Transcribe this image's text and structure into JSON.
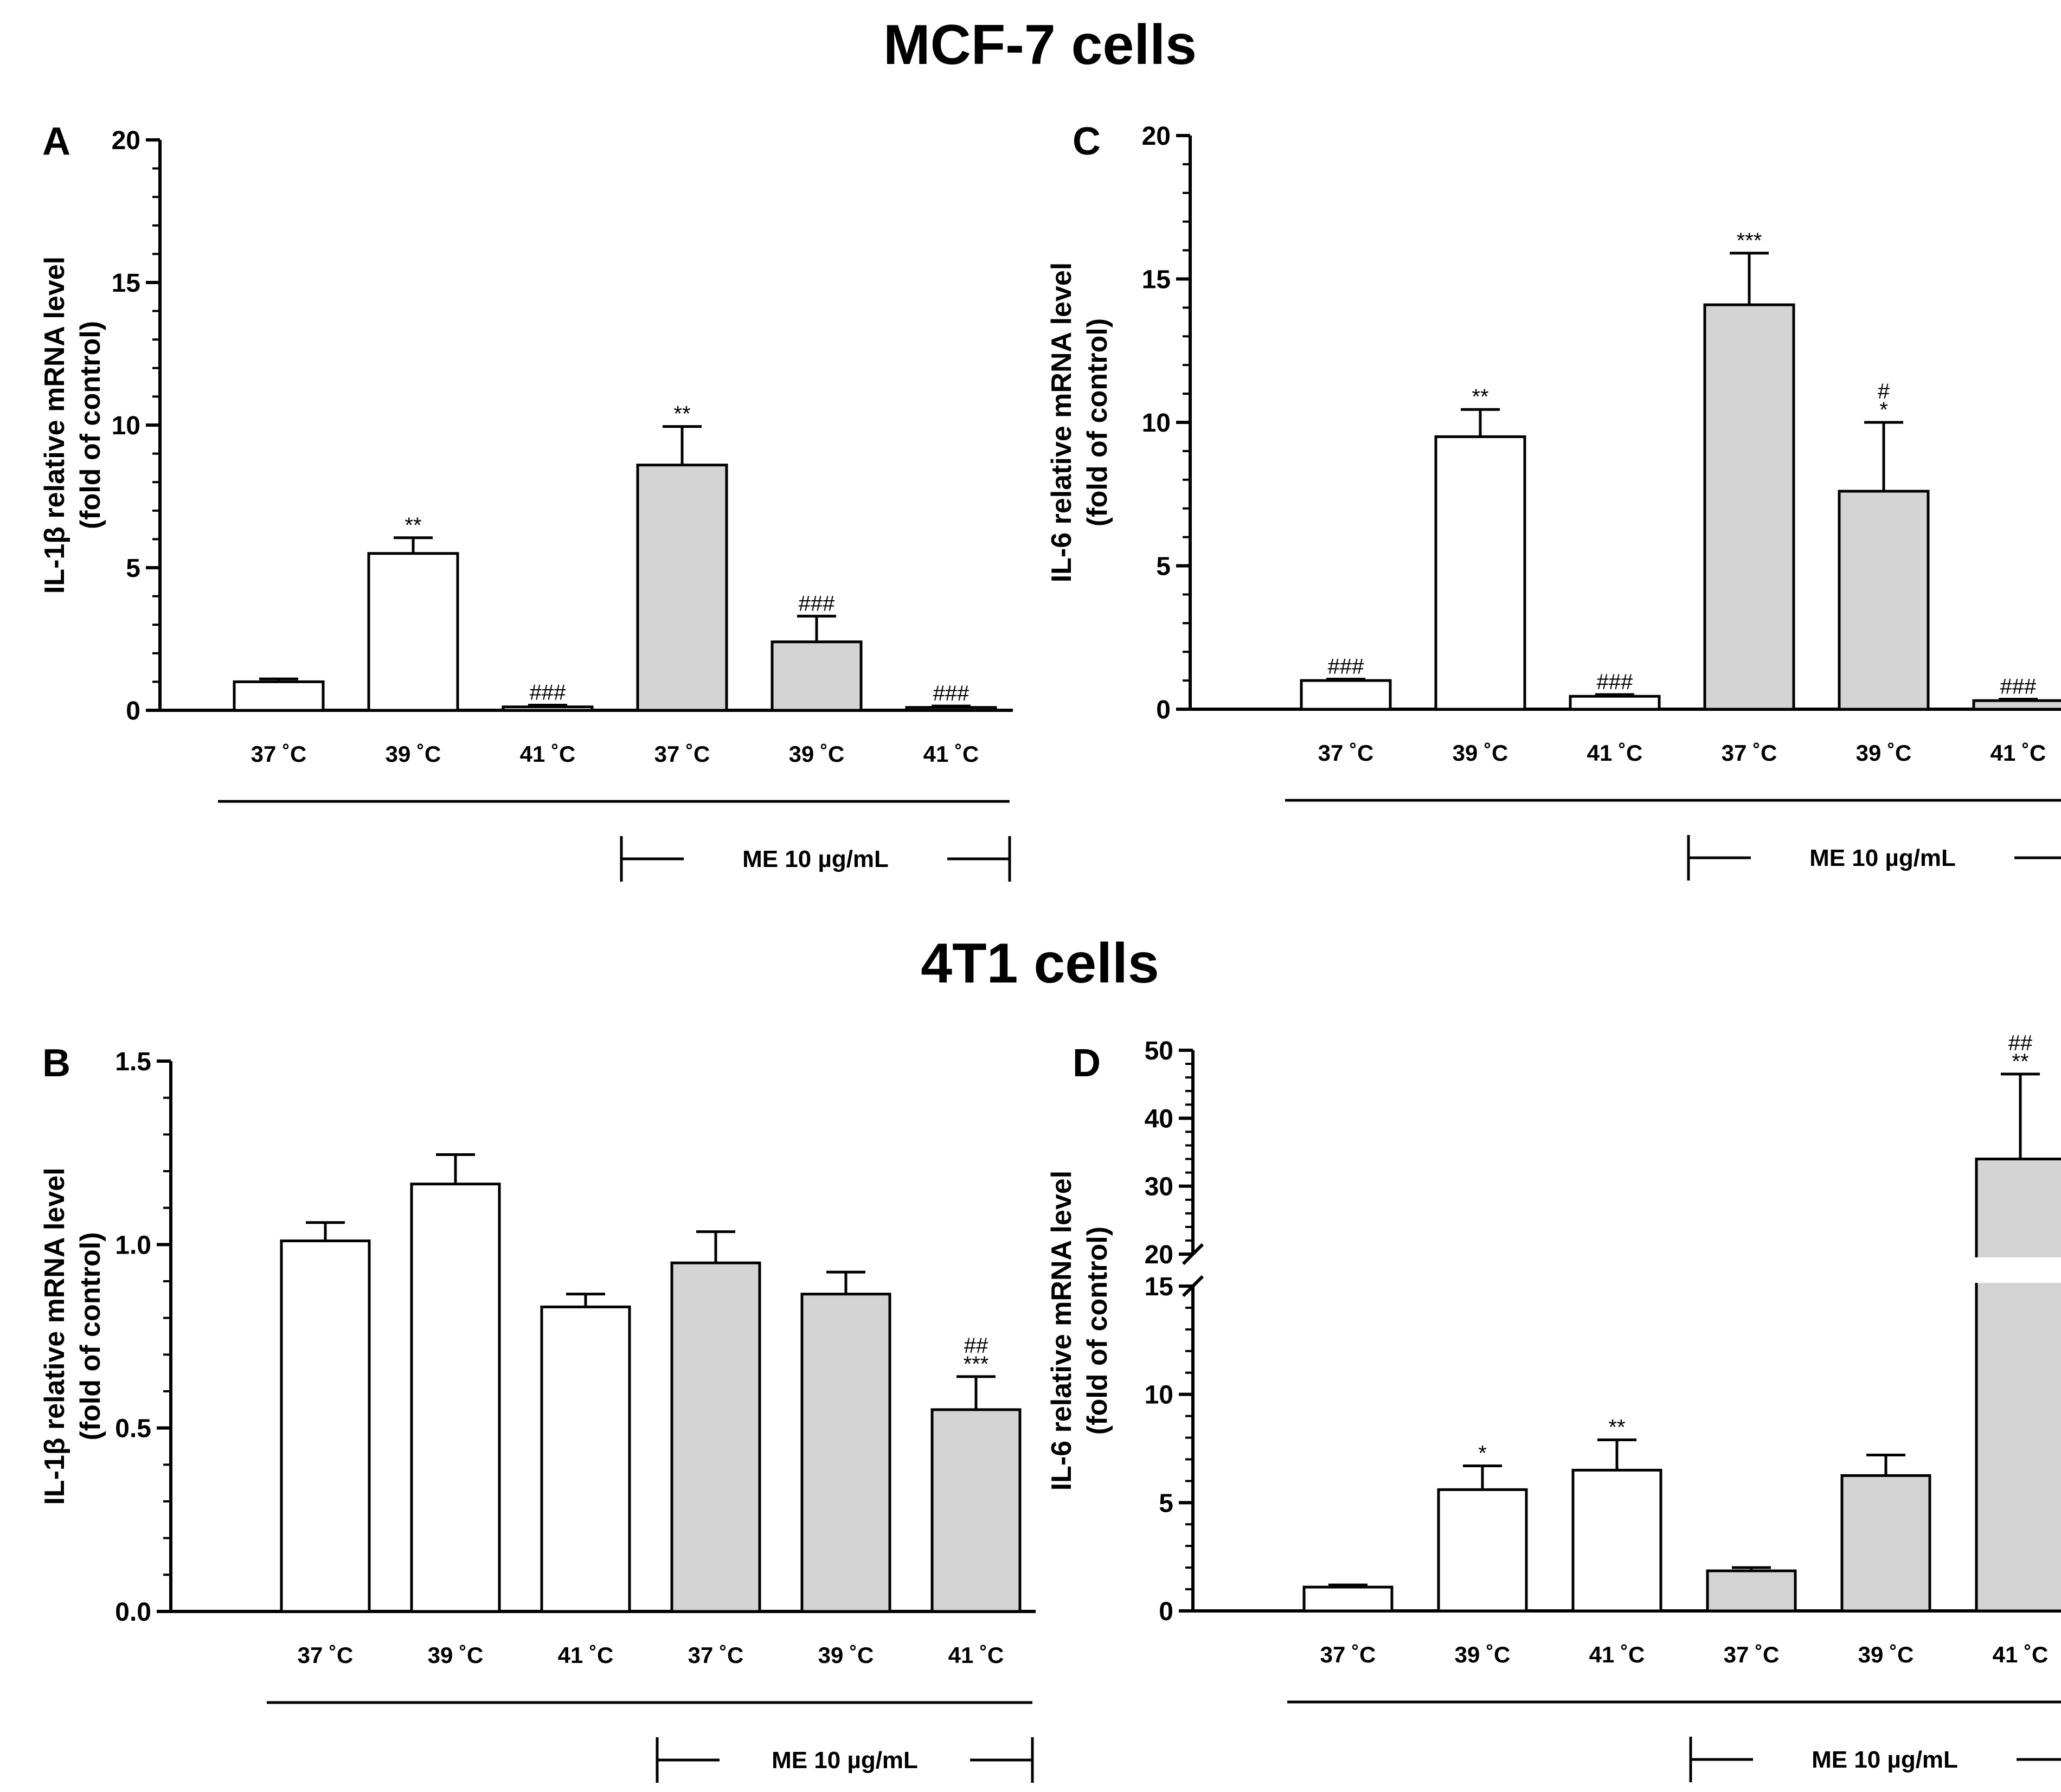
{
  "sections": [
    {
      "title": "MCF-7 cells"
    },
    {
      "title": "4T1 cells"
    }
  ],
  "colors": {
    "control_fill": "#ffffff",
    "treated_fill": "#d4d4d4",
    "stroke": "#000000"
  },
  "chart_data": [
    {
      "panel": "A",
      "section": 0,
      "type": "bar",
      "ylabel_lines": [
        "IL-1β relative mRNA level",
        "(fold of control)"
      ],
      "categories": [
        "37 ˚C",
        "39 ˚C",
        "41 ˚C",
        "37 ˚C",
        "39 ˚C",
        "41 ˚C"
      ],
      "treatment_label": "ME 10 µg/mL",
      "treated_from_index": 3,
      "values": [
        1.0,
        5.5,
        0.12,
        8.6,
        2.4,
        0.1
      ],
      "errors": [
        0.1,
        0.55,
        0.06,
        1.35,
        0.9,
        0.05
      ],
      "significance": [
        [],
        [
          "**"
        ],
        [
          "###"
        ],
        [
          "**"
        ],
        [
          "###"
        ],
        [
          "###"
        ]
      ],
      "ylim": [
        0,
        20
      ],
      "yticks": [
        0,
        5,
        10,
        15,
        20
      ],
      "ytick_labels": [
        "0",
        "5",
        "10",
        "15",
        "20"
      ],
      "minor_ticks_per_major": 5
    },
    {
      "panel": "C",
      "section": 0,
      "type": "bar",
      "ylabel_lines": [
        "IL-6 relative mRNA level",
        "(fold of control)"
      ],
      "categories": [
        "37 ˚C",
        "39 ˚C",
        "41 ˚C",
        "37 ˚C",
        "39 ˚C",
        "41 ˚C"
      ],
      "treatment_label": "ME 10 µg/mL",
      "treated_from_index": 3,
      "values": [
        1.0,
        9.5,
        0.45,
        14.1,
        7.6,
        0.3
      ],
      "errors": [
        0.05,
        0.95,
        0.06,
        1.8,
        2.4,
        0.05
      ],
      "significance": [
        [
          "###"
        ],
        [
          "**"
        ],
        [
          "###"
        ],
        [
          "***"
        ],
        [
          "#",
          "*"
        ],
        [
          "###"
        ]
      ],
      "ylim": [
        0,
        20
      ],
      "yticks": [
        0,
        5,
        10,
        15,
        20
      ],
      "ytick_labels": [
        "0",
        "5",
        "10",
        "15",
        "20"
      ],
      "minor_ticks_per_major": 5
    },
    {
      "panel": "B",
      "section": 1,
      "type": "bar",
      "ylabel_lines": [
        "IL-1β relative mRNA level",
        "(fold of control)"
      ],
      "categories": [
        "37 ˚C",
        "39 ˚C",
        "41 ˚C",
        "37 ˚C",
        "39 ˚C",
        "41 ˚C"
      ],
      "treatment_label": "ME 10 µg/mL",
      "treated_from_index": 3,
      "values": [
        1.01,
        1.165,
        0.83,
        0.95,
        0.865,
        0.55
      ],
      "errors": [
        0.05,
        0.08,
        0.035,
        0.085,
        0.06,
        0.09
      ],
      "significance": [
        [],
        [],
        [],
        [],
        [],
        [
          "##",
          "***"
        ]
      ],
      "ylim": [
        0,
        1.5
      ],
      "yticks": [
        0,
        0.5,
        1.0,
        1.5
      ],
      "ytick_labels": [
        "0.0",
        "0.5",
        "1.0",
        "1.5"
      ],
      "minor_ticks_per_major": 5
    },
    {
      "panel": "D",
      "section": 1,
      "type": "bar",
      "ylabel_lines": [
        "IL-6 relative mRNA level",
        "(fold of control)"
      ],
      "categories": [
        "37 ˚C",
        "39 ˚C",
        "41 ˚C",
        "37 ˚C",
        "39 ˚C",
        "41 ˚C"
      ],
      "treatment_label": "ME 10 µg/mL",
      "treated_from_index": 3,
      "values": [
        1.1,
        5.6,
        6.5,
        1.85,
        6.25,
        34.0
      ],
      "errors": [
        0.1,
        1.1,
        1.4,
        0.15,
        0.95,
        12.5
      ],
      "significance": [
        [],
        [
          "*"
        ],
        [
          "**"
        ],
        [],
        [],
        [
          "##",
          "**"
        ]
      ],
      "ylim": [
        0,
        50
      ],
      "axis_break": [
        15,
        20
      ],
      "yticks": [
        0,
        5,
        10,
        15,
        20,
        30,
        40,
        50
      ],
      "ytick_labels": [
        "0",
        "5",
        "10",
        "15",
        "20",
        "30",
        "40",
        "50"
      ],
      "minor_ticks_per_major": 5
    }
  ]
}
